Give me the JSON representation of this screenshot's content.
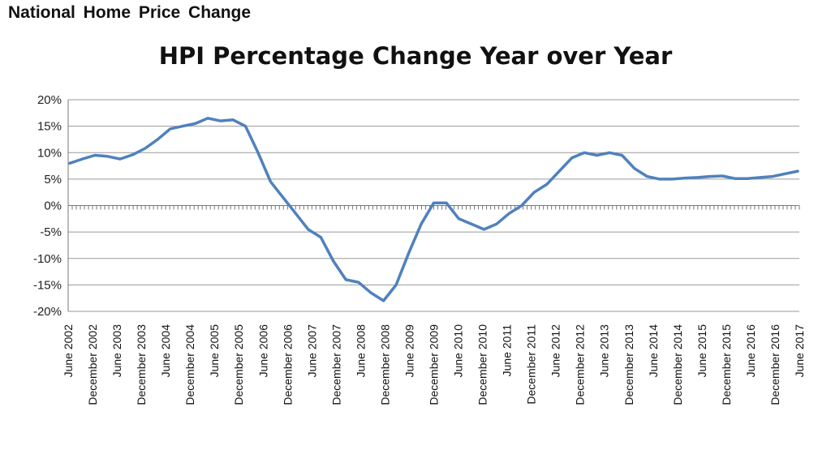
{
  "header": {
    "title": "National  Home  Price  Change"
  },
  "chart_data": {
    "type": "line",
    "title": "HPI Percentage Change Year over Year",
    "xlabel": "",
    "ylabel": "",
    "ylim": [
      -20,
      20
    ],
    "y_ticks": [
      "20%",
      "15%",
      "10%",
      "5%",
      "0%",
      "-5%",
      "-10%",
      "-15%",
      "-20%"
    ],
    "x_tick_labels": [
      "June 2002",
      "December 2002",
      "June 2003",
      "December 2003",
      "June 2004",
      "December 2004",
      "June 2005",
      "December 2005",
      "June 2006",
      "December 2006",
      "June 2007",
      "December 2007",
      "June 2008",
      "December 2008",
      "June 2009",
      "December 2009",
      "June 2010",
      "December 2010",
      "June 2011",
      "December 2011",
      "June 2012",
      "December 2012",
      "June 2013",
      "December 2013",
      "June 2014",
      "December 2014",
      "June 2015",
      "December 2015",
      "June 2016",
      "December 2016",
      "June 2017"
    ],
    "grid": true,
    "line_color": "#4f81bd",
    "series": [
      {
        "values": [
          8.0,
          8.8,
          9.5,
          9.3,
          8.8,
          9.6,
          10.8,
          12.5,
          14.5,
          15.0,
          15.5,
          16.5,
          16.0,
          16.2,
          15.0,
          10.0,
          4.5,
          1.5,
          -1.5,
          -4.5,
          -6.0,
          -10.5,
          -14.0,
          -14.5,
          -16.5,
          -18.0,
          -15.0,
          -9.0,
          -3.5,
          0.5,
          0.5,
          -2.5,
          -3.5,
          -4.5,
          -3.5,
          -1.5,
          0.0,
          2.5,
          4.0,
          6.5,
          9.0,
          10.0,
          9.5,
          10.0,
          9.5,
          7.0,
          5.5,
          5.0,
          5.0,
          5.2,
          5.3,
          5.5,
          5.6,
          5.1,
          5.1,
          5.3,
          5.5,
          6.0,
          6.5
        ]
      }
    ]
  }
}
